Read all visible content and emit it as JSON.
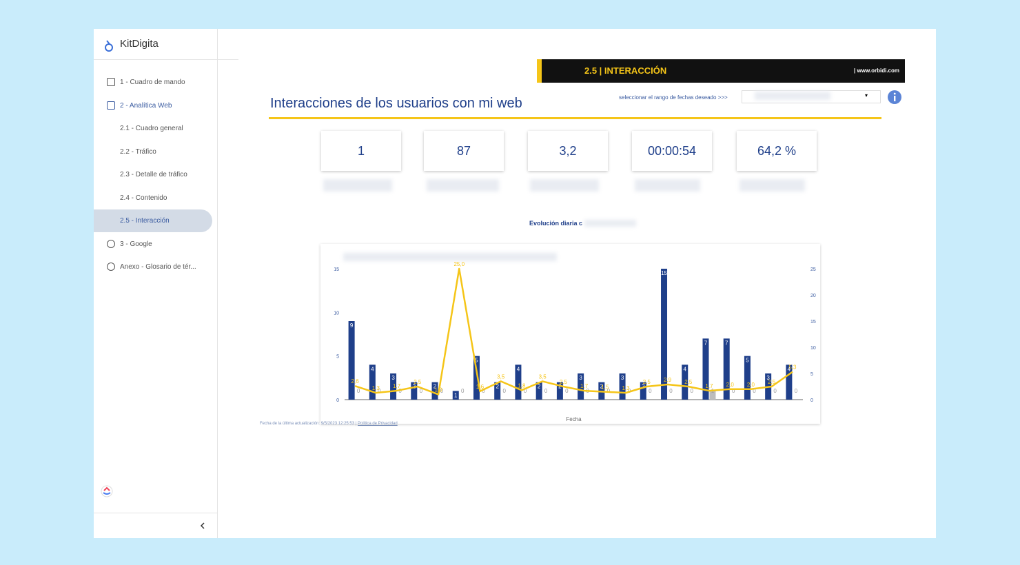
{
  "sidebar": {
    "brand": "KitDigita",
    "items": [
      "1 - Cuadro de mando",
      "2 - Analítica Web",
      "2.1 - Cuadro general",
      "2.2 - Tráfico",
      "2.3 - Detalle de tráfico",
      "2.4 - Contenido",
      "2.5 - Interacción",
      "3 - Google",
      "Anexo - Glosario de tér..."
    ]
  },
  "banner": {
    "title": "2.5 | INTERACCIÓN",
    "site": "| www.orbidi.com"
  },
  "header": {
    "title": "Interacciones de los usuarios con mi web",
    "date_prompt": "seleccionar el rango de fechas deseado >>>"
  },
  "kpis": [
    "1",
    "87",
    "3,2",
    "00:00:54",
    "64,2 %"
  ],
  "footer": {
    "updated": "Fecha de la última actualización: 9/5/2023 12:25:53",
    "privacy": "Política de Privacidad"
  },
  "chart_data": {
    "type": "bar-line",
    "title": "Evolución diaria c",
    "x_label": "Fecha",
    "categories": [
      null,
      null,
      null,
      null,
      null,
      null,
      null,
      null,
      null,
      null,
      null,
      null,
      null,
      null,
      null,
      null,
      null,
      null,
      null,
      null,
      null,
      null
    ],
    "series": [
      {
        "type": "bar",
        "color": "#1f3f8a",
        "values": [
          9,
          4,
          3,
          2,
          2,
          1,
          5,
          2,
          4,
          2,
          2,
          3,
          2,
          3,
          2,
          15,
          4,
          7,
          7,
          5,
          3,
          4
        ]
      },
      {
        "type": "bar",
        "color": "#bdbdbd",
        "values": [
          0,
          0,
          0,
          0,
          0,
          0,
          0,
          0,
          0,
          0,
          0,
          0,
          0,
          0,
          0,
          0,
          0,
          1,
          0,
          0,
          0,
          0
        ]
      },
      {
        "type": "line",
        "axis": "y2",
        "color": "#f5c518",
        "values": [
          2.6,
          1.3,
          1.7,
          2.5,
          1,
          25,
          1.6,
          3.5,
          1.8,
          3.5,
          2.5,
          1.7,
          1.5,
          1.3,
          2.5,
          2.9,
          2.5,
          1.7,
          2,
          2,
          2.5,
          5.3
        ],
        "value_labels": [
          "2,6",
          "1,3",
          "1,7",
          "2,5",
          "1,0",
          "25,0",
          "1,6",
          "3,5",
          "1,8",
          "3,5",
          "2,5",
          "1,7",
          "1,5",
          "1,3",
          "2,5",
          "2,9",
          "2,5",
          "1,7",
          "2,0",
          "2,0",
          "2,5",
          "5,3"
        ]
      }
    ],
    "ylim": [
      0,
      15
    ],
    "yticks": [
      0,
      5,
      10,
      15
    ],
    "y2lim": [
      0,
      25
    ],
    "y2ticks": [
      0,
      5,
      10,
      15,
      20,
      25
    ]
  }
}
